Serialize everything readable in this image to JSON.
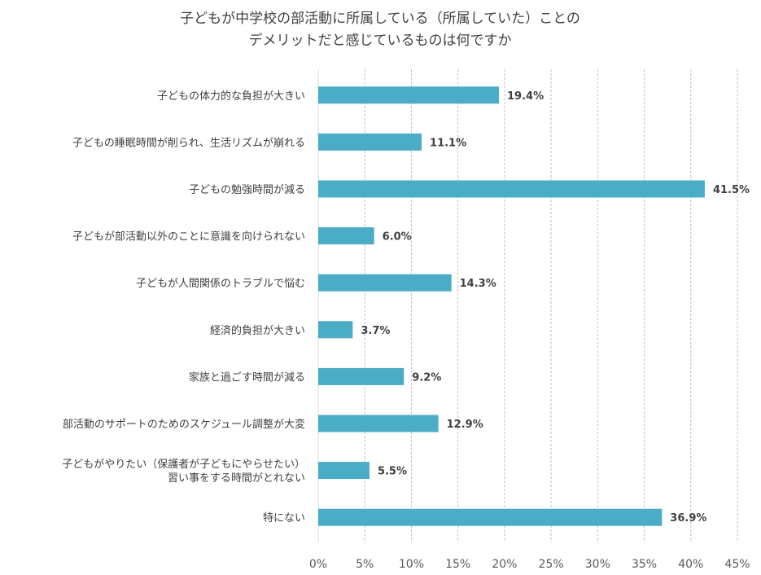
{
  "chart_data": {
    "type": "bar",
    "orientation": "horizontal",
    "title_lines": [
      "子どもが中学校の部活動に所属している（所属していた）ことの",
      "デメリットだと感じているものは何ですか"
    ],
    "categories": [
      [
        "子どもの体力的な負担が大きい"
      ],
      [
        "子どもの睡眠時間が削られ、生活リズムが崩れる"
      ],
      [
        "子どもの勉強時間が減る"
      ],
      [
        "子どもが部活動以外のことに意識を向けられない"
      ],
      [
        "子どもが人間関係のトラブルで悩む"
      ],
      [
        "経済的負担が大きい"
      ],
      [
        "家族と過ごす時間が減る"
      ],
      [
        "部活動のサポートのためのスケジュール調整が大変"
      ],
      [
        "子どもがやりたい（保護者が子どもにやらせたい）",
        "習い事をする時間がとれない"
      ],
      [
        "特にない"
      ]
    ],
    "values": [
      19.4,
      11.1,
      41.5,
      6.0,
      14.3,
      3.7,
      9.2,
      12.9,
      5.5,
      36.9
    ],
    "data_labels": [
      "19.4%",
      "11.1%",
      "41.5%",
      "6.0%",
      "14.3%",
      "3.7%",
      "9.2%",
      "12.9%",
      "5.5%",
      "36.9%"
    ],
    "xlim": [
      0,
      45
    ],
    "x_ticks": [
      0,
      5,
      10,
      15,
      20,
      25,
      30,
      35,
      40,
      45
    ],
    "x_tick_labels": [
      "0%",
      "5%",
      "10%",
      "15%",
      "20%",
      "25%",
      "30%",
      "35%",
      "40%",
      "45%"
    ],
    "grid": "vertical dashed",
    "bar_color": "#4bacc6",
    "grid_color": "#bfbfbf"
  }
}
